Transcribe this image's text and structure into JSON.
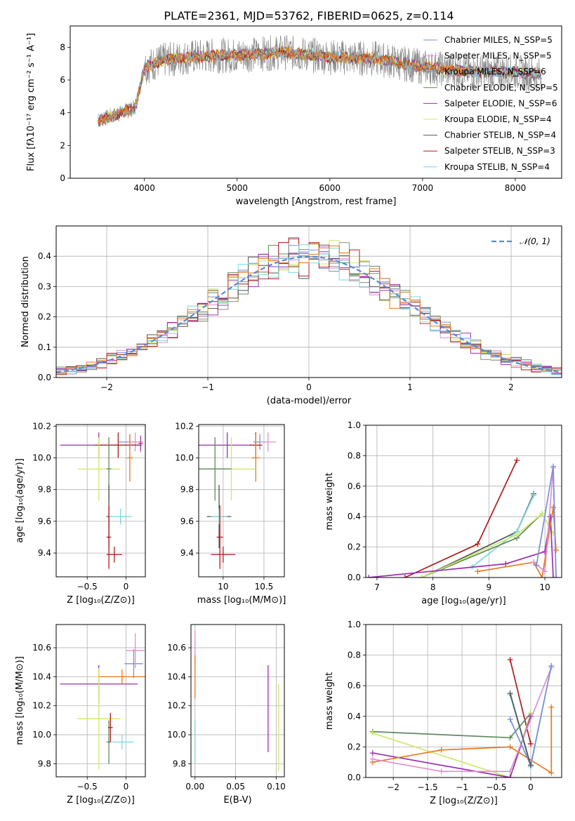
{
  "title": "PLATE=2361, MJD=53762, FIBERID=0625, z=0.114",
  "colors": {
    "chabrier_miles": "#7b8fd6",
    "salpeter_miles": "#e08fd0",
    "kroupa_miles": "#8a8a8a",
    "chabrier_elodie": "#5f8a5f",
    "salpeter_elodie": "#9b2fb0",
    "kroupa_elodie": "#cfe86a",
    "chabrier_stelib": "#555555",
    "salpeter_stelib": "#b01c1c",
    "kroupa_stelib": "#7ad6dc",
    "orange": "#e87820",
    "gaussian": "#5b87d6"
  },
  "chart_data": [
    {
      "panel": "spectrum",
      "type": "line",
      "xlabel": "wavelength [Angstrom, rest frame]",
      "ylabel": "Flux [fλ10⁻¹⁷ erg cm⁻² s⁻¹ A⁻¹]",
      "xlim": [
        3200,
        8500
      ],
      "ylim": [
        0,
        9.3
      ],
      "xticks": [
        4000,
        5000,
        6000,
        7000,
        8000
      ],
      "yticks": [
        0,
        2,
        4,
        6,
        8
      ],
      "legend_position": "top-right",
      "legend": [
        {
          "label": "Chabrier MILES, N_SSP=5",
          "color": "#7b8fd6"
        },
        {
          "label": "Salpeter MILES, N_SSP=5",
          "color": "#e08fd0"
        },
        {
          "label": "Kroupa MILES, N_SSP=6",
          "color": "#8a8a8a"
        },
        {
          "label": "Chabrier ELODIE, N_SSP=5",
          "color": "#5f8a5f"
        },
        {
          "label": "Salpeter ELODIE, N_SSP=6",
          "color": "#9b2fb0"
        },
        {
          "label": "Kroupa ELODIE, N_SSP=4",
          "color": "#cfe86a"
        },
        {
          "label": "Chabrier STELIB, N_SSP=4",
          "color": "#555555"
        },
        {
          "label": "Salpeter STELIB, N_SSP=3",
          "color": "#b01c1c"
        },
        {
          "label": "Kroupa STELIB, N_SSP=4",
          "color": "#7ad6dc"
        }
      ],
      "continuum": [
        [
          3500,
          3.5
        ],
        [
          3700,
          3.9
        ],
        [
          3900,
          4.3
        ],
        [
          4000,
          6.8
        ],
        [
          4200,
          7.2
        ],
        [
          4500,
          7.4
        ],
        [
          4800,
          7.5
        ],
        [
          5000,
          7.5
        ],
        [
          5500,
          7.7
        ],
        [
          6000,
          7.4
        ],
        [
          6500,
          7.3
        ],
        [
          7000,
          6.8
        ],
        [
          7500,
          6.5
        ],
        [
          8000,
          6.5
        ],
        [
          8280,
          6.3
        ]
      ]
    },
    {
      "panel": "residual-histogram",
      "type": "line",
      "xlabel": "(data-model)/error",
      "ylabel": "Normed distribution",
      "xlim": [
        -2.5,
        2.5
      ],
      "ylim": [
        0,
        0.5
      ],
      "xticks": [
        -2,
        -1,
        0,
        1,
        2
      ],
      "yticks": [
        0.0,
        0.1,
        0.2,
        0.3,
        0.4
      ],
      "legend_position": "top-right",
      "legend": [
        {
          "label": "𝒩(0, 1)",
          "color": "#5b87d6"
        }
      ],
      "bin_width": 0.1
    },
    {
      "panel": "age-vs-Z",
      "type": "scatter",
      "xlabel": "Z [log₁₀(Z/Z⊙)]",
      "ylabel": "age  [log₁₀(age/yr)]",
      "xlim": [
        -0.9,
        0.25
      ],
      "ylim": [
        9.25,
        10.21
      ],
      "xticks": [
        -0.5,
        0.0
      ],
      "yticks": [
        9.4,
        9.6,
        9.8,
        10.0,
        10.2
      ],
      "points": [
        {
          "x": 0.05,
          "y": 10.1,
          "xerr": 0.15,
          "yerr": 0.05,
          "color": "#7b8fd6"
        },
        {
          "x": 0.12,
          "y": 10.1,
          "xerr": 0.1,
          "yerr": 0.06,
          "color": "#e08fd0"
        },
        {
          "x": 0.19,
          "y": 10.09,
          "xerr": 0.03,
          "yerr": 0.05,
          "color": "#9b2fb0"
        },
        {
          "x": -0.35,
          "y": 10.08,
          "xerr": 0.5,
          "yerr": 0.08,
          "color": "#9b2fb0"
        },
        {
          "x": -0.1,
          "y": 10.08,
          "xerr": 0.3,
          "yerr": 0.08,
          "color": "#b01c1c"
        },
        {
          "x": 0.05,
          "y": 10.0,
          "xerr": 0.04,
          "yerr": 0.15,
          "color": "#e87820"
        },
        {
          "x": -0.35,
          "y": 9.93,
          "xerr": 0.27,
          "yerr": 0.2,
          "color": "#cfe86a"
        },
        {
          "x": -0.22,
          "y": 9.93,
          "xerr": 0.03,
          "yerr": 0.2,
          "color": "#5f8a5f"
        },
        {
          "x": -0.22,
          "y": 9.63,
          "xerr": 0.03,
          "yerr": 0.2,
          "color": "#555555"
        },
        {
          "x": -0.07,
          "y": 9.63,
          "xerr": 0.15,
          "yerr": 0.05,
          "color": "#7ad6dc"
        },
        {
          "x": -0.22,
          "y": 9.5,
          "xerr": 0.03,
          "yerr": 0.2,
          "color": "#b01c1c"
        },
        {
          "x": -0.15,
          "y": 9.39,
          "xerr": 0.1,
          "yerr": 0.05,
          "color": "#b01c1c"
        }
      ]
    },
    {
      "panel": "age-vs-mass",
      "type": "scatter",
      "xlabel": "mass [log₁₀(M/M⊙)]",
      "ylabel": "",
      "xlim": [
        9.7,
        10.75
      ],
      "ylim": [
        9.25,
        10.21
      ],
      "xticks": [
        10.0,
        10.5
      ],
      "yticks": [
        9.4,
        9.6,
        9.8,
        10.0,
        10.2
      ],
      "points": [
        {
          "x": 10.45,
          "y": 10.1,
          "xerr": 0.08,
          "yerr": 0.05,
          "color": "#7b8fd6"
        },
        {
          "x": 10.55,
          "y": 10.1,
          "xerr": 0.1,
          "yerr": 0.06,
          "color": "#e08fd0"
        },
        {
          "x": 10.05,
          "y": 10.08,
          "xerr": 0.35,
          "yerr": 0.08,
          "color": "#9b2fb0"
        },
        {
          "x": 10.4,
          "y": 10.08,
          "xerr": 0.08,
          "yerr": 0.08,
          "color": "#b01c1c"
        },
        {
          "x": 10.4,
          "y": 10.0,
          "xerr": 0.05,
          "yerr": 0.15,
          "color": "#e87820"
        },
        {
          "x": 10.1,
          "y": 9.93,
          "xerr": 0.3,
          "yerr": 0.2,
          "color": "#cfe86a"
        },
        {
          "x": 9.9,
          "y": 9.93,
          "xerr": 0.2,
          "yerr": 0.2,
          "color": "#5f8a5f"
        },
        {
          "x": 9.95,
          "y": 9.63,
          "xerr": 0.15,
          "yerr": 0.2,
          "color": "#555555"
        },
        {
          "x": 9.95,
          "y": 9.63,
          "xerr": 0.1,
          "yerr": 0.05,
          "color": "#7ad6dc"
        },
        {
          "x": 9.96,
          "y": 9.5,
          "xerr": 0.04,
          "yerr": 0.2,
          "color": "#b01c1c"
        },
        {
          "x": 10.0,
          "y": 9.39,
          "xerr": 0.15,
          "yerr": 0.05,
          "color": "#b01c1c"
        }
      ]
    },
    {
      "panel": "mass-weight-vs-age",
      "type": "line",
      "xlabel": "age  [log₁₀(age/yr)]",
      "ylabel": "mass weight",
      "xlim": [
        6.8,
        10.3
      ],
      "ylim": [
        0,
        1.0
      ],
      "xticks": [
        7,
        8,
        9,
        10
      ],
      "yticks": [
        0.0,
        0.2,
        0.4,
        0.6,
        0.8,
        1.0
      ],
      "series": [
        {
          "color": "#b01c1c",
          "x": [
            7.5,
            8.8,
            9.5
          ],
          "y": [
            0.0,
            0.22,
            0.77
          ]
        },
        {
          "color": "#555555",
          "x": [
            7.8,
            9.5,
            9.8
          ],
          "y": [
            0.0,
            0.3,
            0.55
          ]
        },
        {
          "color": "#7ad6dc",
          "x": [
            8.7,
            9.5,
            9.8
          ],
          "y": [
            0.07,
            0.3,
            0.54
          ]
        },
        {
          "color": "#5f8a5f",
          "x": [
            7.8,
            9.5,
            9.95
          ],
          "y": [
            0.0,
            0.26,
            0.42
          ]
        },
        {
          "color": "#cfe86a",
          "x": [
            7.8,
            9.5,
            9.95,
            10.15
          ],
          "y": [
            0.0,
            0.28,
            0.42,
            0.29
          ]
        },
        {
          "color": "#9b2fb0",
          "x": [
            6.85,
            9.3,
            10.0,
            10.1,
            10.15
          ],
          "y": [
            0.0,
            0.09,
            0.17,
            0.4,
            0.0
          ]
        },
        {
          "color": "#e87820",
          "x": [
            8.8,
            9.8,
            9.95,
            10.15,
            10.2
          ],
          "y": [
            0.04,
            0.1,
            0.0,
            0.46,
            0.18
          ]
        },
        {
          "color": "#e08fd0",
          "x": [
            9.8,
            10.0,
            10.15,
            10.2
          ],
          "y": [
            0.1,
            0.04,
            0.72,
            0.0
          ]
        },
        {
          "color": "#7b8fd6",
          "x": [
            9.85,
            10.15,
            10.2
          ],
          "y": [
            0.08,
            0.73,
            0.0
          ]
        }
      ]
    },
    {
      "panel": "mass-vs-Z",
      "type": "scatter",
      "xlabel": "Z [log₁₀(Z/Z⊙)]",
      "ylabel": "mass [log₁₀(M/M⊙)]",
      "xlim": [
        -0.9,
        0.25
      ],
      "ylim": [
        9.71,
        10.76
      ],
      "xticks": [
        -0.5,
        0.0
      ],
      "yticks": [
        9.8,
        10.0,
        10.2,
        10.4,
        10.6
      ],
      "points": [
        {
          "x": 0.1,
          "y": 10.49,
          "xerr": 0.12,
          "yerr": 0.1,
          "color": "#7b8fd6"
        },
        {
          "x": 0.12,
          "y": 10.58,
          "xerr": 0.12,
          "yerr": 0.12,
          "color": "#e08fd0"
        },
        {
          "x": -0.35,
          "y": 10.35,
          "xerr": 0.5,
          "yerr": 0.13,
          "color": "#9b2fb0"
        },
        {
          "x": -0.05,
          "y": 10.4,
          "xerr": 0.3,
          "yerr": 0.05,
          "color": "#e87820"
        },
        {
          "x": -0.35,
          "y": 10.11,
          "xerr": 0.28,
          "yerr": 0.35,
          "color": "#cfe86a"
        },
        {
          "x": -0.22,
          "y": 9.95,
          "xerr": 0.03,
          "yerr": 0.15,
          "color": "#5f8a5f"
        },
        {
          "x": -0.05,
          "y": 9.95,
          "xerr": 0.15,
          "yerr": 0.05,
          "color": "#7ad6dc"
        },
        {
          "x": -0.2,
          "y": 10.05,
          "xerr": 0.03,
          "yerr": 0.1,
          "color": "#b01c1c"
        }
      ]
    },
    {
      "panel": "mass-vs-EBV",
      "type": "scatter",
      "xlabel": "E(B-V)",
      "ylabel": "",
      "xlim": [
        -0.005,
        0.11
      ],
      "ylim": [
        9.71,
        10.76
      ],
      "xticks": [
        0.0,
        0.05,
        0.1
      ],
      "xtick_labels": [
        "0.00",
        "0.05",
        "0.10"
      ],
      "yticks": [
        9.8,
        10.0,
        10.2,
        10.4,
        10.6
      ],
      "points": [
        {
          "x": 0.0,
          "y": 10.6,
          "yerr": 0.12,
          "color": "#e08fd0"
        },
        {
          "x": 0.0,
          "y": 10.4,
          "yerr": 0.15,
          "color": "#e87820"
        },
        {
          "x": 0.0,
          "y": 9.95,
          "yerr": 0.15,
          "color": "#7ad6dc"
        },
        {
          "x": 0.09,
          "y": 10.18,
          "yerr": 0.3,
          "color": "#9b2fb0"
        },
        {
          "x": 0.103,
          "y": 10.05,
          "yerr": 0.3,
          "color": "#cfe86a"
        }
      ]
    },
    {
      "panel": "mass-weight-vs-Z",
      "type": "line",
      "xlabel": "Z [log₁₀(Z/Z⊙)]",
      "ylabel": "mass weight",
      "xlim": [
        -2.4,
        0.45
      ],
      "ylim": [
        0,
        1.0
      ],
      "xticks": [
        -2.0,
        -1.5,
        -1.0,
        -0.5,
        0.0
      ],
      "yticks": [
        0.0,
        0.2,
        0.4,
        0.6,
        0.8,
        1.0
      ],
      "series": [
        {
          "color": "#b01c1c",
          "x": [
            -0.3,
            0.0
          ],
          "y": [
            0.77,
            0.22
          ]
        },
        {
          "color": "#5f8a5f",
          "x": [
            -2.3,
            -0.3,
            0.0
          ],
          "y": [
            0.3,
            0.26,
            0.42
          ]
        },
        {
          "color": "#cfe86a",
          "x": [
            -2.3,
            -0.3,
            0.0
          ],
          "y": [
            0.29,
            0.0,
            0.42
          ]
        },
        {
          "color": "#9b2fb0",
          "x": [
            -2.3,
            -0.3,
            0.0
          ],
          "y": [
            0.16,
            0.0,
            0.4
          ]
        },
        {
          "color": "#e87820",
          "x": [
            -2.3,
            -1.3,
            -0.3,
            0.3,
            0.3
          ],
          "y": [
            0.1,
            0.18,
            0.2,
            0.03,
            0.46
          ]
        },
        {
          "color": "#e08fd0",
          "x": [
            -2.3,
            -1.3,
            -0.3,
            0.3
          ],
          "y": [
            0.12,
            0.04,
            0.04,
            0.72
          ]
        },
        {
          "color": "#7ad6dc",
          "x": [
            -0.3,
            0.0,
            0.3
          ],
          "y": [
            0.54,
            0.07,
            0.73
          ]
        },
        {
          "color": "#7b8fd6",
          "x": [
            -0.3,
            0.0,
            0.3
          ],
          "y": [
            0.38,
            0.08,
            0.73
          ]
        },
        {
          "color": "#555555",
          "x": [
            -0.3,
            0.0
          ],
          "y": [
            0.55,
            0.08
          ]
        }
      ]
    }
  ]
}
